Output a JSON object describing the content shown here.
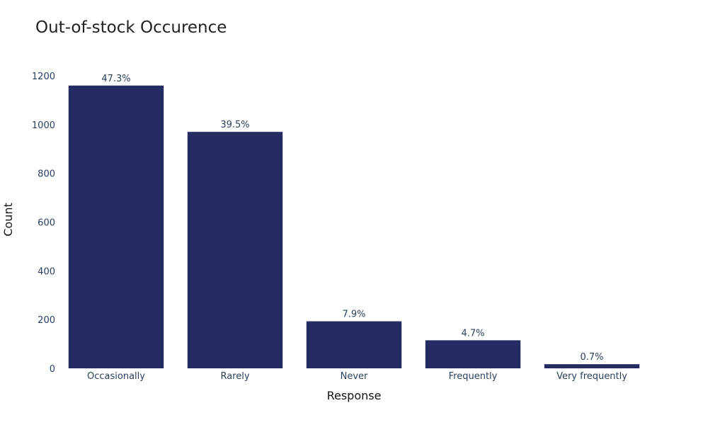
{
  "chart_data": {
    "type": "bar",
    "title": "Out-of-stock Occurence",
    "xlabel": "Response",
    "ylabel": "Count",
    "categories": [
      "Occasionally",
      "Rarely",
      "Never",
      "Frequently",
      "Very frequently"
    ],
    "values": [
      1160,
      970,
      193,
      115,
      17
    ],
    "data_labels": [
      "47.3%",
      "39.5%",
      "7.9%",
      "4.7%",
      "0.7%"
    ],
    "yticks": [
      0,
      200,
      400,
      600,
      800,
      1000,
      1200
    ],
    "ylim": [
      0,
      1200
    ],
    "grid": false,
    "bar_color": "#252b63"
  }
}
